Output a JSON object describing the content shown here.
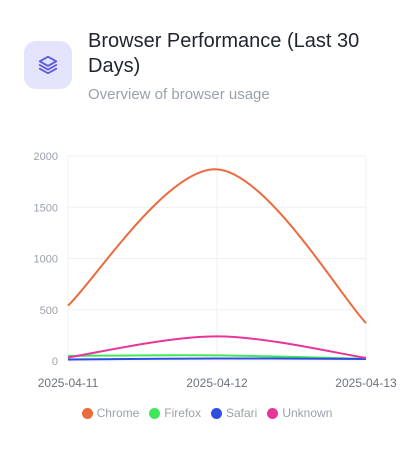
{
  "header": {
    "icon": "layers-icon",
    "title": "Browser Performance (Last 30 Days)",
    "subtitle": "Overview of browser usage"
  },
  "chart_data": {
    "type": "line",
    "x": [
      "2025-04-11",
      "2025-04-12",
      "2025-04-13"
    ],
    "ylim": [
      0,
      2000
    ],
    "yticks": [
      0,
      500,
      1000,
      1500,
      2000
    ],
    "grid": true,
    "legend_position": "bottom",
    "series": [
      {
        "name": "Chrome",
        "values": [
          540,
          1870,
          370
        ],
        "color": "#ec6a3c"
      },
      {
        "name": "Firefox",
        "values": [
          50,
          55,
          20
        ],
        "color": "#3ee85a"
      },
      {
        "name": "Safari",
        "values": [
          15,
          25,
          20
        ],
        "color": "#2f4ee0"
      },
      {
        "name": "Unknown",
        "values": [
          35,
          240,
          30
        ],
        "color": "#e8359a"
      }
    ]
  }
}
